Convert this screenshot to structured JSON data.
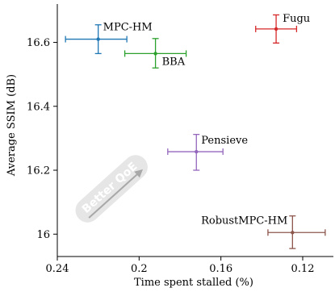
{
  "chart_data": {
    "type": "scatter",
    "title": "",
    "xlabel": "Time spent stalled (%)",
    "ylabel": "Average SSIM (dB)",
    "x_reversed": true,
    "xlim": [
      0.24,
      0.105
    ],
    "ylim": [
      15.93,
      16.72
    ],
    "x_ticks": [
      0.24,
      0.2,
      0.16,
      0.12
    ],
    "x_tick_labels": [
      "0.24",
      "0.2",
      "0.16",
      "0.12"
    ],
    "y_ticks": [
      16,
      16.2,
      16.4,
      16.6
    ],
    "y_tick_labels": [
      "16",
      "16.2",
      "16.4",
      "16.6"
    ],
    "grid": false,
    "legend": "none",
    "annotation": "Better QoE",
    "points": [
      {
        "label": "MPC-HM",
        "x": 0.22,
        "y": 16.61,
        "x_err": [
          0.236,
          0.206
        ],
        "y_err": [
          16.565,
          16.655
        ],
        "color": "#1f77b4"
      },
      {
        "label": "BBA",
        "x": 0.192,
        "y": 16.565,
        "x_err": [
          0.207,
          0.177
        ],
        "y_err": [
          16.52,
          16.612
        ],
        "color": "#2ca02c"
      },
      {
        "label": "Fugu",
        "x": 0.133,
        "y": 16.642,
        "x_err": [
          0.143,
          0.123
        ],
        "y_err": [
          16.598,
          16.686
        ],
        "color": "#d62728"
      },
      {
        "label": "Pensieve",
        "x": 0.172,
        "y": 16.258,
        "x_err": [
          0.186,
          0.159
        ],
        "y_err": [
          16.2,
          16.312
        ],
        "color": "#9467bd"
      },
      {
        "label": "RobustMPC-HM",
        "x": 0.125,
        "y": 16.005,
        "x_err": [
          0.137,
          0.109
        ],
        "y_err": [
          15.955,
          16.057
        ],
        "color": "#8c564b"
      }
    ]
  }
}
